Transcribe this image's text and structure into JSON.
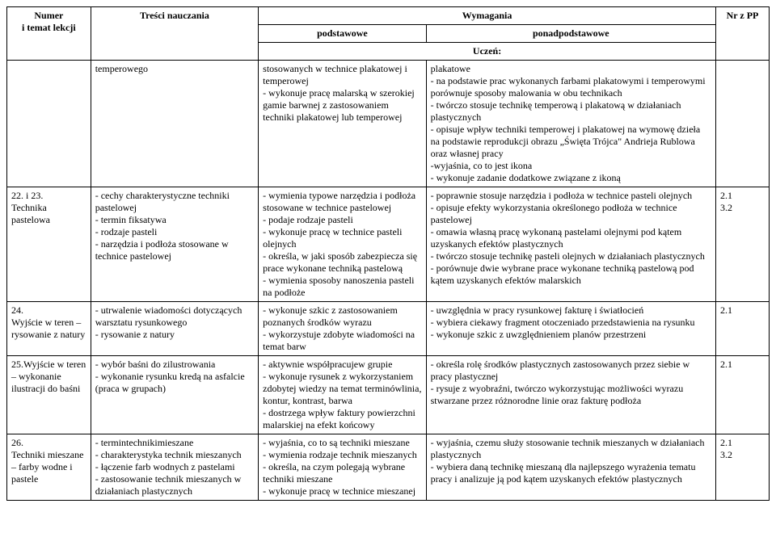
{
  "headers": {
    "numer": "Numer\ni temat lekcji",
    "tresci": "Treści nauczania",
    "wymagania": "Wymagania",
    "podstawowe": "podstawowe",
    "ponad": "ponadpodstawowe",
    "uczen": "Uczeń:",
    "nr": "Nr z PP"
  },
  "rows": [
    {
      "numer": "",
      "tresci": "temperowego",
      "podst": "stosowanych w technice plakatowej i temperowej\n- wykonuje pracę malarską w szerokiej gamie barwnej z zastosowaniem techniki plakatowej lub temperowej",
      "ponad": "plakatowe\n- na podstawie prac wykonanych farbami plakatowymi i temperowymi porównuje sposoby malowania w obu technikach\n- twórczo stosuje technikę temperową i plakatową w działaniach plastycznych\n- opisuje wpływ techniki temperowej i plakatowej na wymowę dzieła na podstawie reprodukcji obrazu „Święta Trójca\" Andrieja Rublowa oraz własnej pracy\n-wyjaśnia, co to jest ikona\n- wykonuje zadanie dodatkowe związane z ikoną",
      "nr": ""
    },
    {
      "numer": "22. i 23.\nTechnika pastelowa",
      "tresci": "- cechy charakterystyczne techniki pastelowej\n- termin fiksatywa\n- rodzaje pasteli\n- narzędzia i podłoża stosowane w technice pastelowej",
      "podst": "- wymienia typowe narzędzia i podłoża stosowane w technice pastelowej\n- podaje rodzaje pasteli\n- wykonuje pracę w technice pasteli olejnych\n- określa, w jaki sposób zabezpiecza się prace wykonane techniką pastelową\n- wymienia sposoby nanoszenia pasteli na podłoże",
      "ponad": "- poprawnie stosuje narzędzia i podłoża w technice pasteli olejnych\n- opisuje efekty wykorzystania określonego podłoża w technice pastelowej\n- omawia własną pracę wykonaną pastelami olejnymi pod kątem uzyskanych efektów plastycznych\n- twórczo stosuje technikę pasteli olejnych w działaniach plastycznych\n- porównuje dwie wybrane prace wykonane techniką pastelową pod kątem uzyskanych efektów malarskich",
      "nr": "2.1\n3.2"
    },
    {
      "numer": "24.\nWyjście w teren – rysowanie z natury",
      "tresci": "- utrwalenie wiadomości dotyczących warsztatu rysunkowego\n- rysowanie z natury",
      "podst": "- wykonuje szkic z zastosowaniem poznanych środków wyrazu\n- wykorzystuje zdobyte wiadomości na temat barw",
      "ponad": "- uwzględnia w pracy rysunkowej fakturę i światłocień\n- wybiera ciekawy fragment otoczeniado przedstawienia na rysunku\n- wykonuje szkic z uwzględnieniem planów przestrzeni",
      "nr": "2.1"
    },
    {
      "numer": "25.Wyjście w teren – wykonanie ilustracji do baśni",
      "tresci": "- wybór baśni do zilustrowania\n- wykonanie rysunku kredą na asfalcie (praca w grupach)",
      "podst": "- aktywnie współpracujew grupie\n- wykonuje rysunek z wykorzystaniem zdobytej wiedzy na temat terminówlinia, kontur, kontrast, barwa\n- dostrzega wpływ faktury powierzchni malarskiej na efekt końcowy",
      "ponad": "- określa rolę środków plastycznych zastosowanych przez siebie w pracy plastycznej\n- rysuje z wyobraźni, twórczo wykorzystując możliwości wyrazu stwarzane przez różnorodne linie oraz fakturę podłoża",
      "nr": "2.1"
    },
    {
      "numer": "26.\nTechniki mieszane – farby wodne i pastele",
      "tresci": "- termintechnikimieszane\n- charakterystyka technik mieszanych\n- łączenie farb wodnych z pastelami\n- zastosowanie technik mieszanych w działaniach plastycznych",
      "podst": "- wyjaśnia, co to są techniki mieszane\n- wymienia rodzaje technik mieszanych\n- określa, na czym polegają wybrane techniki mieszane\n- wykonuje pracę w technice mieszanej",
      "ponad": "- wyjaśnia, czemu służy stosowanie technik mieszanych w działaniach plastycznych\n- wybiera daną technikę mieszaną dla najlepszego wyrażenia tematu pracy i analizuje ją pod kątem uzyskanych efektów plastycznych",
      "nr": "2.1\n3.2"
    }
  ]
}
